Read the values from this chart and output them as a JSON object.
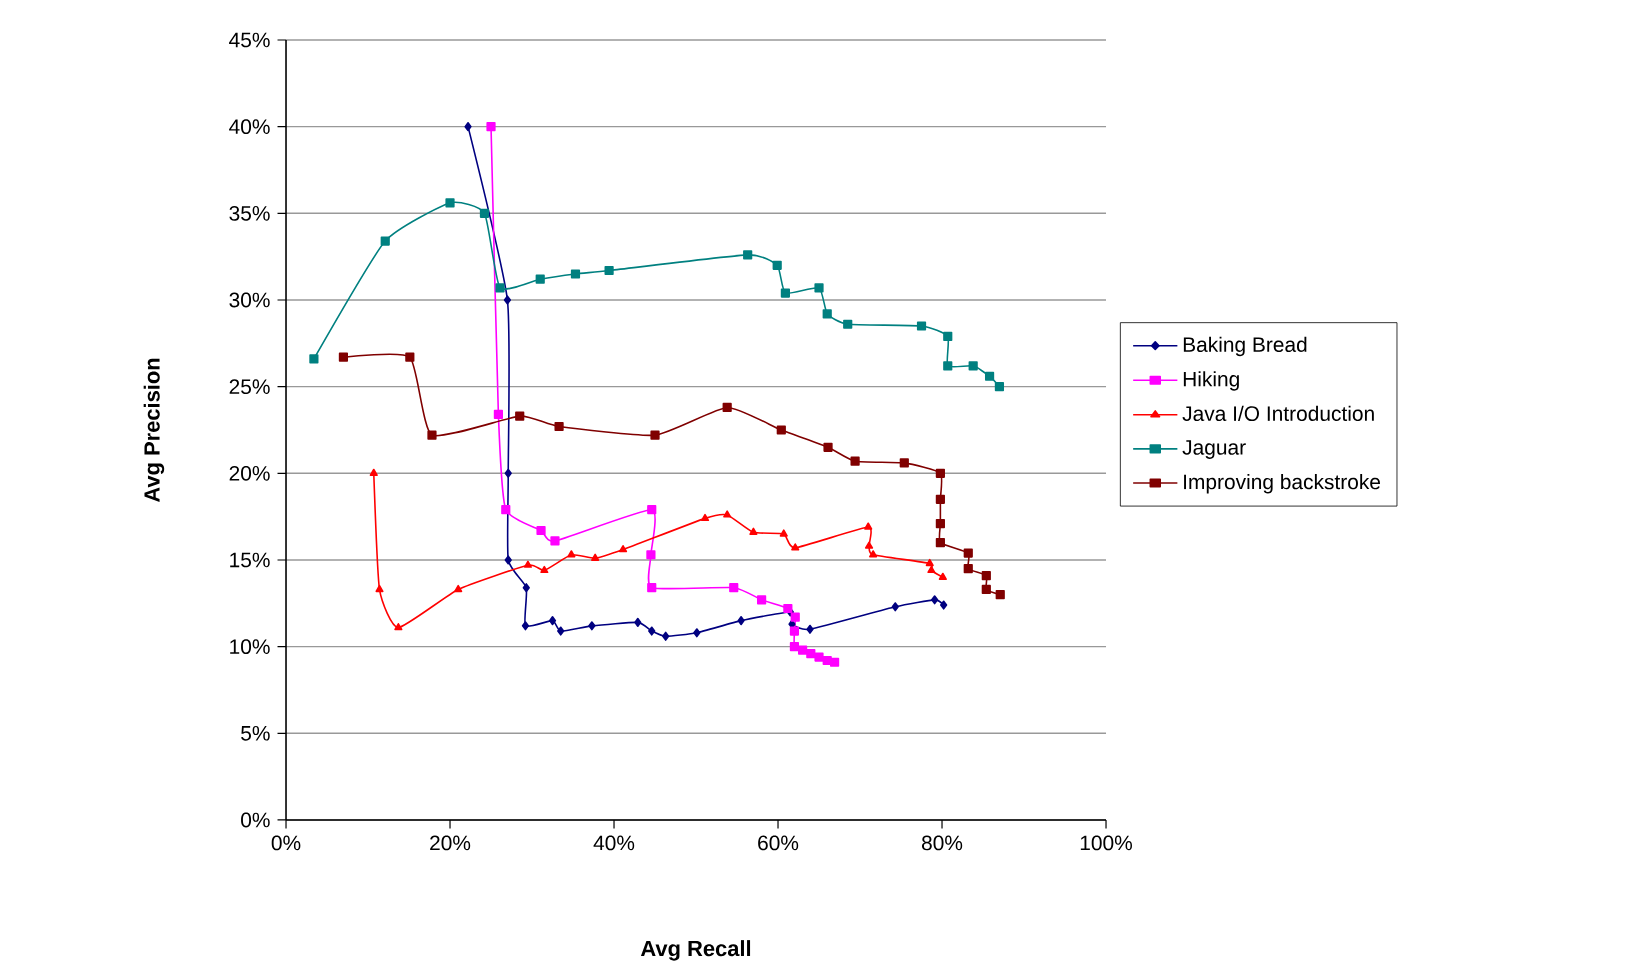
{
  "chart_data": {
    "type": "line",
    "xlabel": "Avg Recall",
    "ylabel": "Avg Precision",
    "xlim": [
      0,
      100
    ],
    "ylim": [
      0,
      45
    ],
    "xticks": [
      {
        "value": 0,
        "label": "0%"
      },
      {
        "value": 20,
        "label": "20%"
      },
      {
        "value": 40,
        "label": "40%"
      },
      {
        "value": 60,
        "label": "60%"
      },
      {
        "value": 80,
        "label": "80%"
      },
      {
        "value": 100,
        "label": "100%"
      }
    ],
    "yticks": [
      {
        "value": 0,
        "label": "0%"
      },
      {
        "value": 5,
        "label": "5%"
      },
      {
        "value": 10,
        "label": "10%"
      },
      {
        "value": 15,
        "label": "15%"
      },
      {
        "value": 20,
        "label": "20%"
      },
      {
        "value": 25,
        "label": "25%"
      },
      {
        "value": 30,
        "label": "30%"
      },
      {
        "value": 35,
        "label": "35%"
      },
      {
        "value": 40,
        "label": "40%"
      },
      {
        "value": 45,
        "label": "45%"
      }
    ],
    "grid": "y",
    "legend": "right",
    "line_style": "solid",
    "series": [
      {
        "name": "Baking Bread",
        "color": "#000080",
        "marker": "diamond",
        "x": [
          22.2,
          27,
          27.1,
          27.1,
          29.3,
          29.2,
          32.5,
          33.5,
          37.3,
          42.9,
          44.6,
          46.3,
          50.1,
          55.5,
          61.5,
          61.7,
          63.9,
          74.3,
          79.1,
          80.2
        ],
        "values": [
          40,
          30,
          20,
          15,
          13.4,
          11.2,
          11.5,
          10.9,
          11.2,
          11.4,
          10.9,
          10.6,
          10.8,
          11.5,
          12,
          11.3,
          11,
          12.3,
          12.7,
          12.4
        ]
      },
      {
        "name": "Hiking",
        "color": "#ff00ff",
        "marker": "square",
        "x": [
          25,
          25.9,
          26.8,
          31.1,
          32.8,
          44.6,
          44.5,
          44.6,
          54.6,
          58,
          61.2,
          62.1,
          62,
          62,
          63,
          64,
          65,
          66,
          66.9
        ],
        "values": [
          40,
          23.4,
          17.9,
          16.7,
          16.1,
          17.9,
          15.3,
          13.4,
          13.4,
          12.7,
          12.2,
          11.7,
          10.9,
          10,
          9.8,
          9.6,
          9.4,
          9.2,
          9.1
        ]
      },
      {
        "name": "Java I/O Introduction",
        "color": "#ff0000",
        "marker": "triangle",
        "x": [
          10.7,
          11.4,
          13.7,
          21,
          29.5,
          31.5,
          34.8,
          37.7,
          41.1,
          51.1,
          53.8,
          57,
          60.7,
          62.1,
          71,
          71.1,
          71.6,
          78.5,
          78.7,
          80.1
        ],
        "values": [
          20,
          13.3,
          11.1,
          13.3,
          14.7,
          14.4,
          15.3,
          15.1,
          15.6,
          17.4,
          17.6,
          16.6,
          16.5,
          15.7,
          16.9,
          15.8,
          15.3,
          14.8,
          14.4,
          14
        ]
      },
      {
        "name": "Jaguar",
        "color": "#008080",
        "marker": "square",
        "x": [
          3.4,
          12.1,
          20,
          24.2,
          26.1,
          31,
          35.3,
          39.4,
          56.3,
          59.9,
          60.9,
          65,
          66,
          68.5,
          77.5,
          80.7,
          80.7,
          83.8,
          85.8,
          87
        ],
        "values": [
          26.6,
          33.4,
          35.6,
          35,
          30.7,
          31.2,
          31.5,
          31.7,
          32.6,
          32,
          30.4,
          30.7,
          29.2,
          28.6,
          28.5,
          27.9,
          26.2,
          26.2,
          25.6,
          25
        ]
      },
      {
        "name": "Improving backstroke",
        "color": "#800000",
        "marker": "square",
        "x": [
          7,
          15.1,
          17.8,
          28.5,
          33.3,
          45,
          53.8,
          60.4,
          66.1,
          69.4,
          75.4,
          79.8,
          79.8,
          79.8,
          79.8,
          83.2,
          83.2,
          85.4,
          85.4,
          87.1
        ],
        "values": [
          26.7,
          26.7,
          22.2,
          23.3,
          22.7,
          22.2,
          23.8,
          22.5,
          21.5,
          20.7,
          20.6,
          20,
          18.5,
          17.1,
          16,
          15.4,
          14.5,
          14.1,
          13.3,
          13
        ]
      }
    ]
  }
}
